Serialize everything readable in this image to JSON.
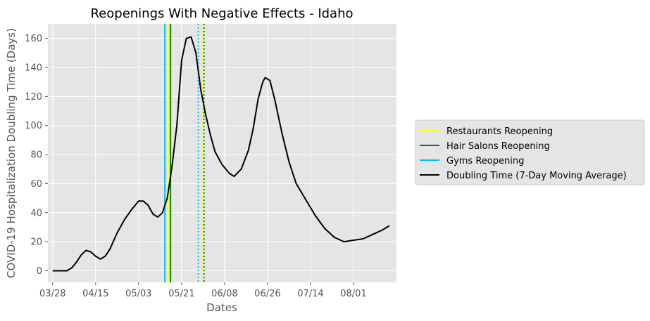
{
  "chart_data": {
    "type": "line",
    "title": "Reopenings With Negative Effects - Idaho",
    "xlabel": "Dates",
    "ylabel": "COVID-19 Hospitalization Doubling Time (Days)",
    "x_tick_labels": [
      "03/28",
      "04/15",
      "05/03",
      "05/21",
      "06/08",
      "06/26",
      "07/14",
      "08/01"
    ],
    "x_tick_dates": [
      "2020-03-28",
      "2020-04-15",
      "2020-05-03",
      "2020-05-21",
      "2020-06-08",
      "2020-06-26",
      "2020-07-14",
      "2020-08-01"
    ],
    "xlim": [
      "2020-03-26",
      "2020-08-19"
    ],
    "y_ticks": [
      0,
      20,
      40,
      60,
      80,
      100,
      120,
      140,
      160
    ],
    "ylim": [
      -8,
      170
    ],
    "grid": true,
    "legend_position": "right",
    "reopening_lines": [
      {
        "name": "Restaurants Reopening",
        "color": "#ffff14",
        "dates": [
          "2020-05-16",
          "2020-05-30"
        ],
        "styles": [
          "solid",
          "dotted"
        ]
      },
      {
        "name": "Hair Salons Reopening",
        "color": "#008000",
        "dates": [
          "2020-05-16",
          "2020-05-30"
        ],
        "styles": [
          "solid",
          "dotted"
        ]
      },
      {
        "name": "Gyms Reopening",
        "color": "#00bfff",
        "dates": [
          "2020-05-14",
          "2020-05-28"
        ],
        "styles": [
          "solid",
          "dotted"
        ]
      }
    ],
    "series": [
      {
        "name": "Doubling Time (7-Day Moving Average)",
        "color": "#000000",
        "points": [
          [
            "2020-03-28",
            0
          ],
          [
            "2020-04-03",
            0
          ],
          [
            "2020-04-05",
            2
          ],
          [
            "2020-04-07",
            6
          ],
          [
            "2020-04-09",
            11
          ],
          [
            "2020-04-11",
            14
          ],
          [
            "2020-04-13",
            13
          ],
          [
            "2020-04-15",
            10
          ],
          [
            "2020-04-17",
            8
          ],
          [
            "2020-04-19",
            10
          ],
          [
            "2020-04-21",
            15
          ],
          [
            "2020-04-24",
            26
          ],
          [
            "2020-04-27",
            35
          ],
          [
            "2020-04-30",
            42
          ],
          [
            "2020-05-03",
            48
          ],
          [
            "2020-05-05",
            48
          ],
          [
            "2020-05-07",
            45
          ],
          [
            "2020-05-09",
            39
          ],
          [
            "2020-05-11",
            37
          ],
          [
            "2020-05-13",
            40
          ],
          [
            "2020-05-15",
            50
          ],
          [
            "2020-05-17",
            72
          ],
          [
            "2020-05-19",
            100
          ],
          [
            "2020-05-21",
            145
          ],
          [
            "2020-05-23",
            160
          ],
          [
            "2020-05-25",
            161
          ],
          [
            "2020-05-27",
            150
          ],
          [
            "2020-05-29",
            125
          ],
          [
            "2020-05-31",
            108
          ],
          [
            "2020-06-02",
            94
          ],
          [
            "2020-06-04",
            82
          ],
          [
            "2020-06-07",
            73
          ],
          [
            "2020-06-10",
            67
          ],
          [
            "2020-06-12",
            65
          ],
          [
            "2020-06-15",
            70
          ],
          [
            "2020-06-18",
            83
          ],
          [
            "2020-06-20",
            98
          ],
          [
            "2020-06-22",
            118
          ],
          [
            "2020-06-24",
            130
          ],
          [
            "2020-06-25",
            133
          ],
          [
            "2020-06-27",
            131
          ],
          [
            "2020-06-29",
            118
          ],
          [
            "2020-07-02",
            95
          ],
          [
            "2020-07-05",
            75
          ],
          [
            "2020-07-08",
            60
          ],
          [
            "2020-07-12",
            49
          ],
          [
            "2020-07-16",
            38
          ],
          [
            "2020-07-20",
            29
          ],
          [
            "2020-07-24",
            23
          ],
          [
            "2020-07-28",
            20
          ],
          [
            "2020-08-01",
            21
          ],
          [
            "2020-08-05",
            22
          ],
          [
            "2020-08-09",
            25
          ],
          [
            "2020-08-13",
            28
          ],
          [
            "2020-08-16",
            31
          ]
        ]
      }
    ]
  }
}
